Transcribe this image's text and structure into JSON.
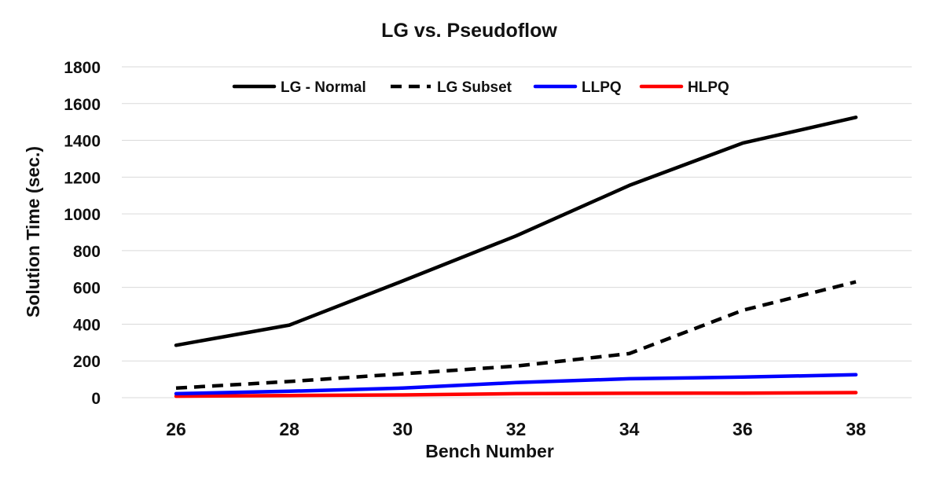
{
  "chart_data": {
    "type": "line",
    "title": "LG vs. Pseudoflow",
    "xlabel": "Bench Number",
    "ylabel": "Solution Time  (sec.)",
    "x": [
      26,
      28,
      30,
      32,
      34,
      36,
      38
    ],
    "ylim": [
      0,
      1800
    ],
    "yticks": [
      0,
      200,
      400,
      600,
      800,
      1000,
      1200,
      1400,
      1600,
      1800
    ],
    "grid": true,
    "legend_position": "top-inside",
    "series": [
      {
        "name": "LG - Normal",
        "color": "#000000",
        "dash": "solid",
        "values": [
          285,
          395,
          635,
          880,
          1155,
          1385,
          1525
        ]
      },
      {
        "name": "LG Subset",
        "color": "#000000",
        "dash": "dashed",
        "values": [
          52,
          88,
          130,
          172,
          240,
          475,
          630
        ]
      },
      {
        "name": "LLPQ",
        "color": "#0000ff",
        "dash": "solid",
        "values": [
          22,
          35,
          52,
          82,
          103,
          112,
          125
        ]
      },
      {
        "name": "HLPQ",
        "color": "#ff0000",
        "dash": "solid",
        "values": [
          8,
          12,
          15,
          22,
          24,
          25,
          28
        ]
      }
    ]
  }
}
